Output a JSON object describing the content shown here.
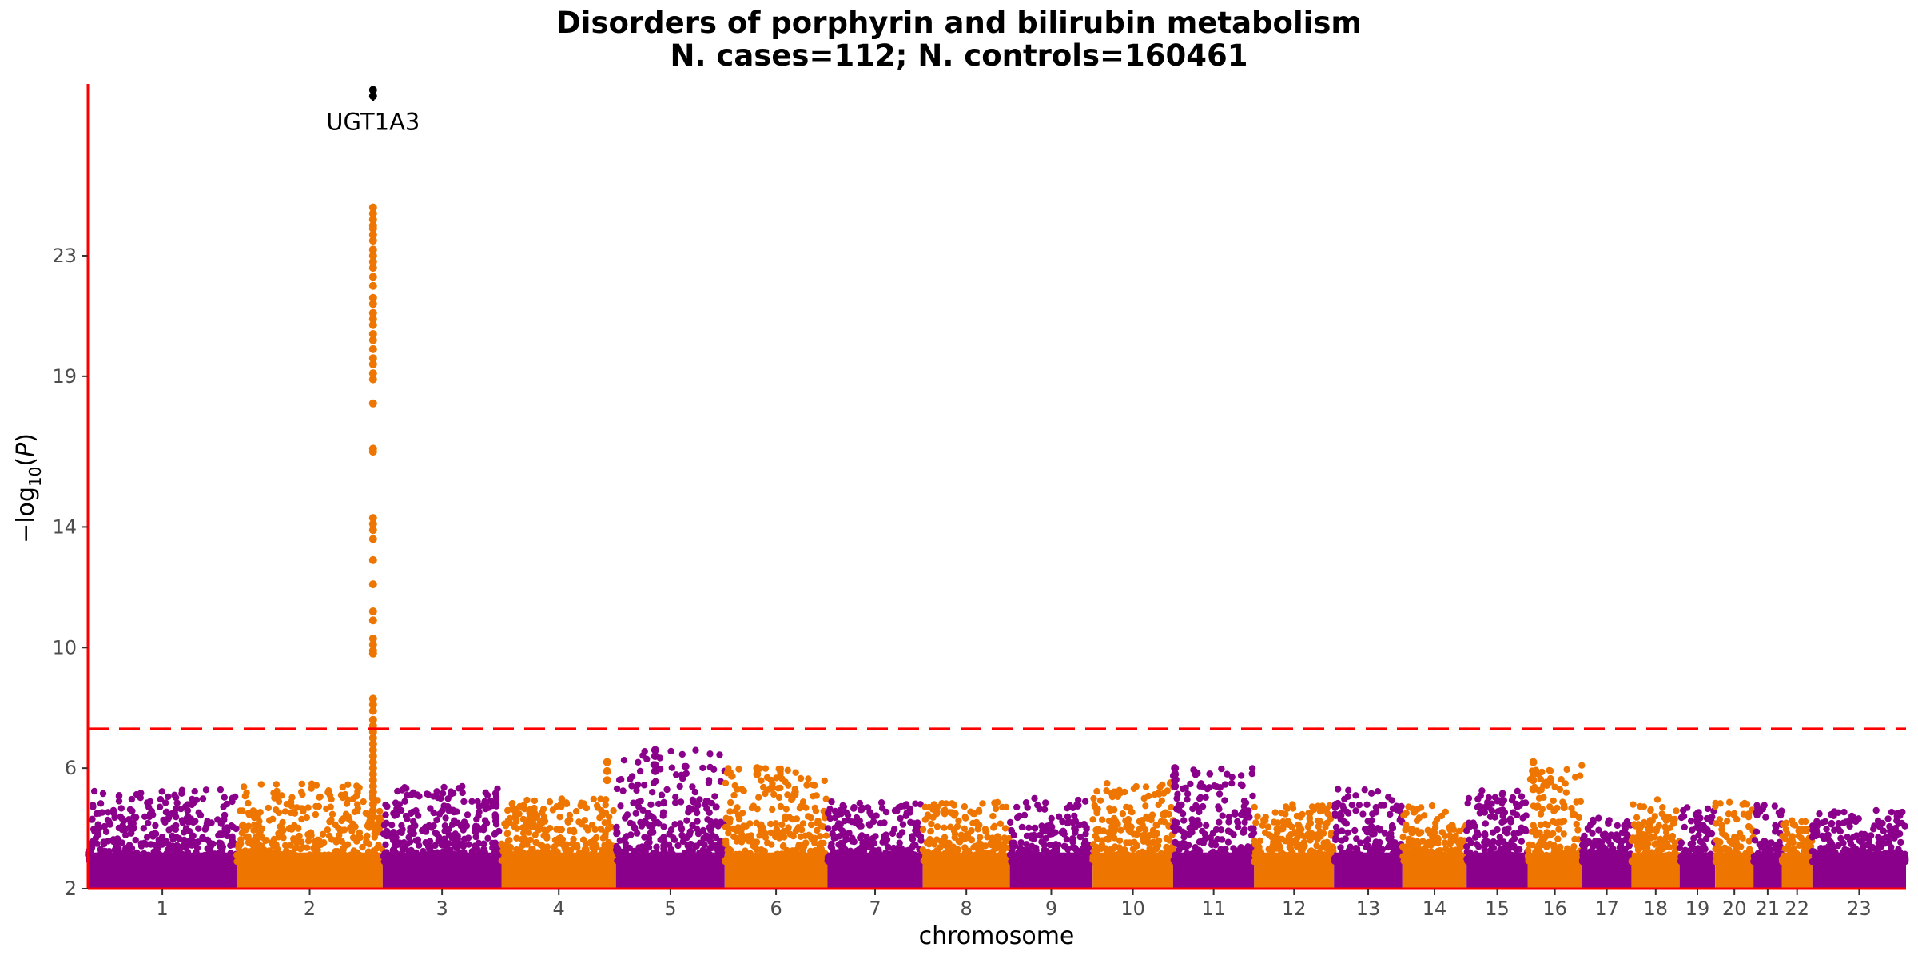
{
  "chart_data": {
    "type": "scatter",
    "subtype": "manhattan",
    "title": "Disorders of porphyrin and bilirubin metabolism",
    "subtitle": "N. cases=112; N. controls=160461",
    "xlabel": "chromosome",
    "ylabel": "-log10(P)",
    "ylim": [
      2,
      28.7
    ],
    "yticks": [
      2,
      6,
      10,
      14,
      19,
      23
    ],
    "significance_threshold": 7.3,
    "colors": {
      "odd": "#8B008B",
      "even": "#EE7600",
      "threshold": "#FF0000",
      "axis": "#FF0000",
      "annotation": "#000000"
    },
    "grid": false,
    "chromosomes": [
      {
        "label": "1",
        "start": 0,
        "end": 248,
        "max": 5.3
      },
      {
        "label": "2",
        "start": 248,
        "end": 491,
        "max": 5.5
      },
      {
        "label": "3",
        "start": 491,
        "end": 689,
        "max": 5.4
      },
      {
        "label": "4",
        "start": 689,
        "end": 880,
        "max": 5.0
      },
      {
        "label": "5",
        "start": 880,
        "end": 1061,
        "max": 6.6
      },
      {
        "label": "6",
        "start": 1061,
        "end": 1232,
        "max": 6.0
      },
      {
        "label": "7",
        "start": 1232,
        "end": 1391,
        "max": 4.9
      },
      {
        "label": "8",
        "start": 1391,
        "end": 1536,
        "max": 4.9
      },
      {
        "label": "9",
        "start": 1536,
        "end": 1674,
        "max": 5.0
      },
      {
        "label": "10",
        "start": 1674,
        "end": 1808,
        "max": 5.5
      },
      {
        "label": "11",
        "start": 1808,
        "end": 1943,
        "max": 6.0
      },
      {
        "label": "12",
        "start": 1943,
        "end": 2076,
        "max": 4.8
      },
      {
        "label": "13",
        "start": 2076,
        "end": 2190,
        "max": 5.4
      },
      {
        "label": "14",
        "start": 2190,
        "end": 2297,
        "max": 4.8
      },
      {
        "label": "15",
        "start": 2297,
        "end": 2399,
        "max": 5.3
      },
      {
        "label": "16",
        "start": 2399,
        "end": 2489,
        "max": 6.2
      },
      {
        "label": "17",
        "start": 2489,
        "end": 2572,
        "max": 4.4
      },
      {
        "label": "18",
        "start": 2572,
        "end": 2652,
        "max": 5.0
      },
      {
        "label": "19",
        "start": 2652,
        "end": 2711,
        "max": 4.7
      },
      {
        "label": "20",
        "start": 2711,
        "end": 2775,
        "max": 4.9
      },
      {
        "label": "21",
        "start": 2775,
        "end": 2822,
        "max": 4.8
      },
      {
        "label": "22",
        "start": 2822,
        "end": 2873,
        "max": 4.3
      },
      {
        "label": "23",
        "start": 2873,
        "end": 3029,
        "max": 4.6
      }
    ],
    "peaks": [
      {
        "chrom": "2",
        "pos": 475,
        "values": [
          28.5,
          28.3,
          24.6,
          24.4,
          24.2,
          24.0,
          23.9,
          23.7,
          23.5,
          23.2,
          23.0,
          22.8,
          22.6,
          22.3,
          22.0,
          21.6,
          21.4,
          21.1,
          20.9,
          20.7,
          20.4,
          20.2,
          19.9,
          19.6,
          19.4,
          19.1,
          18.9,
          18.1,
          16.6,
          16.5,
          14.3,
          14.1,
          13.9,
          13.6,
          12.9,
          12.1,
          11.2,
          10.9,
          10.3,
          10.1,
          9.9,
          9.8,
          8.3,
          8.1,
          7.9,
          7.6,
          7.4,
          7.2,
          7.0,
          6.8,
          6.6,
          6.4,
          6.2,
          6.0,
          5.8,
          5.6,
          5.4,
          5.2,
          5.0,
          4.8,
          4.6,
          4.4
        ],
        "annotation": "UGT1A3"
      },
      {
        "chrom": "4",
        "pos": 865,
        "values": [
          6.2,
          5.9,
          5.6
        ]
      },
      {
        "chrom": "5",
        "pos": 945,
        "values": [
          6.6,
          6.4,
          6.1,
          5.9
        ]
      },
      {
        "chrom": "6",
        "pos": 1115,
        "values": [
          6.0,
          5.8
        ]
      },
      {
        "chrom": "10",
        "pos": 1804,
        "values": [
          5.5
        ]
      },
      {
        "chrom": "11",
        "pos": 1811,
        "values": [
          6.0,
          5.8,
          5.6,
          5.4
        ]
      },
      {
        "chrom": "16",
        "pos": 2408,
        "values": [
          6.2,
          5.6,
          5.3
        ]
      }
    ],
    "annotation_label": "UGT1A3"
  }
}
